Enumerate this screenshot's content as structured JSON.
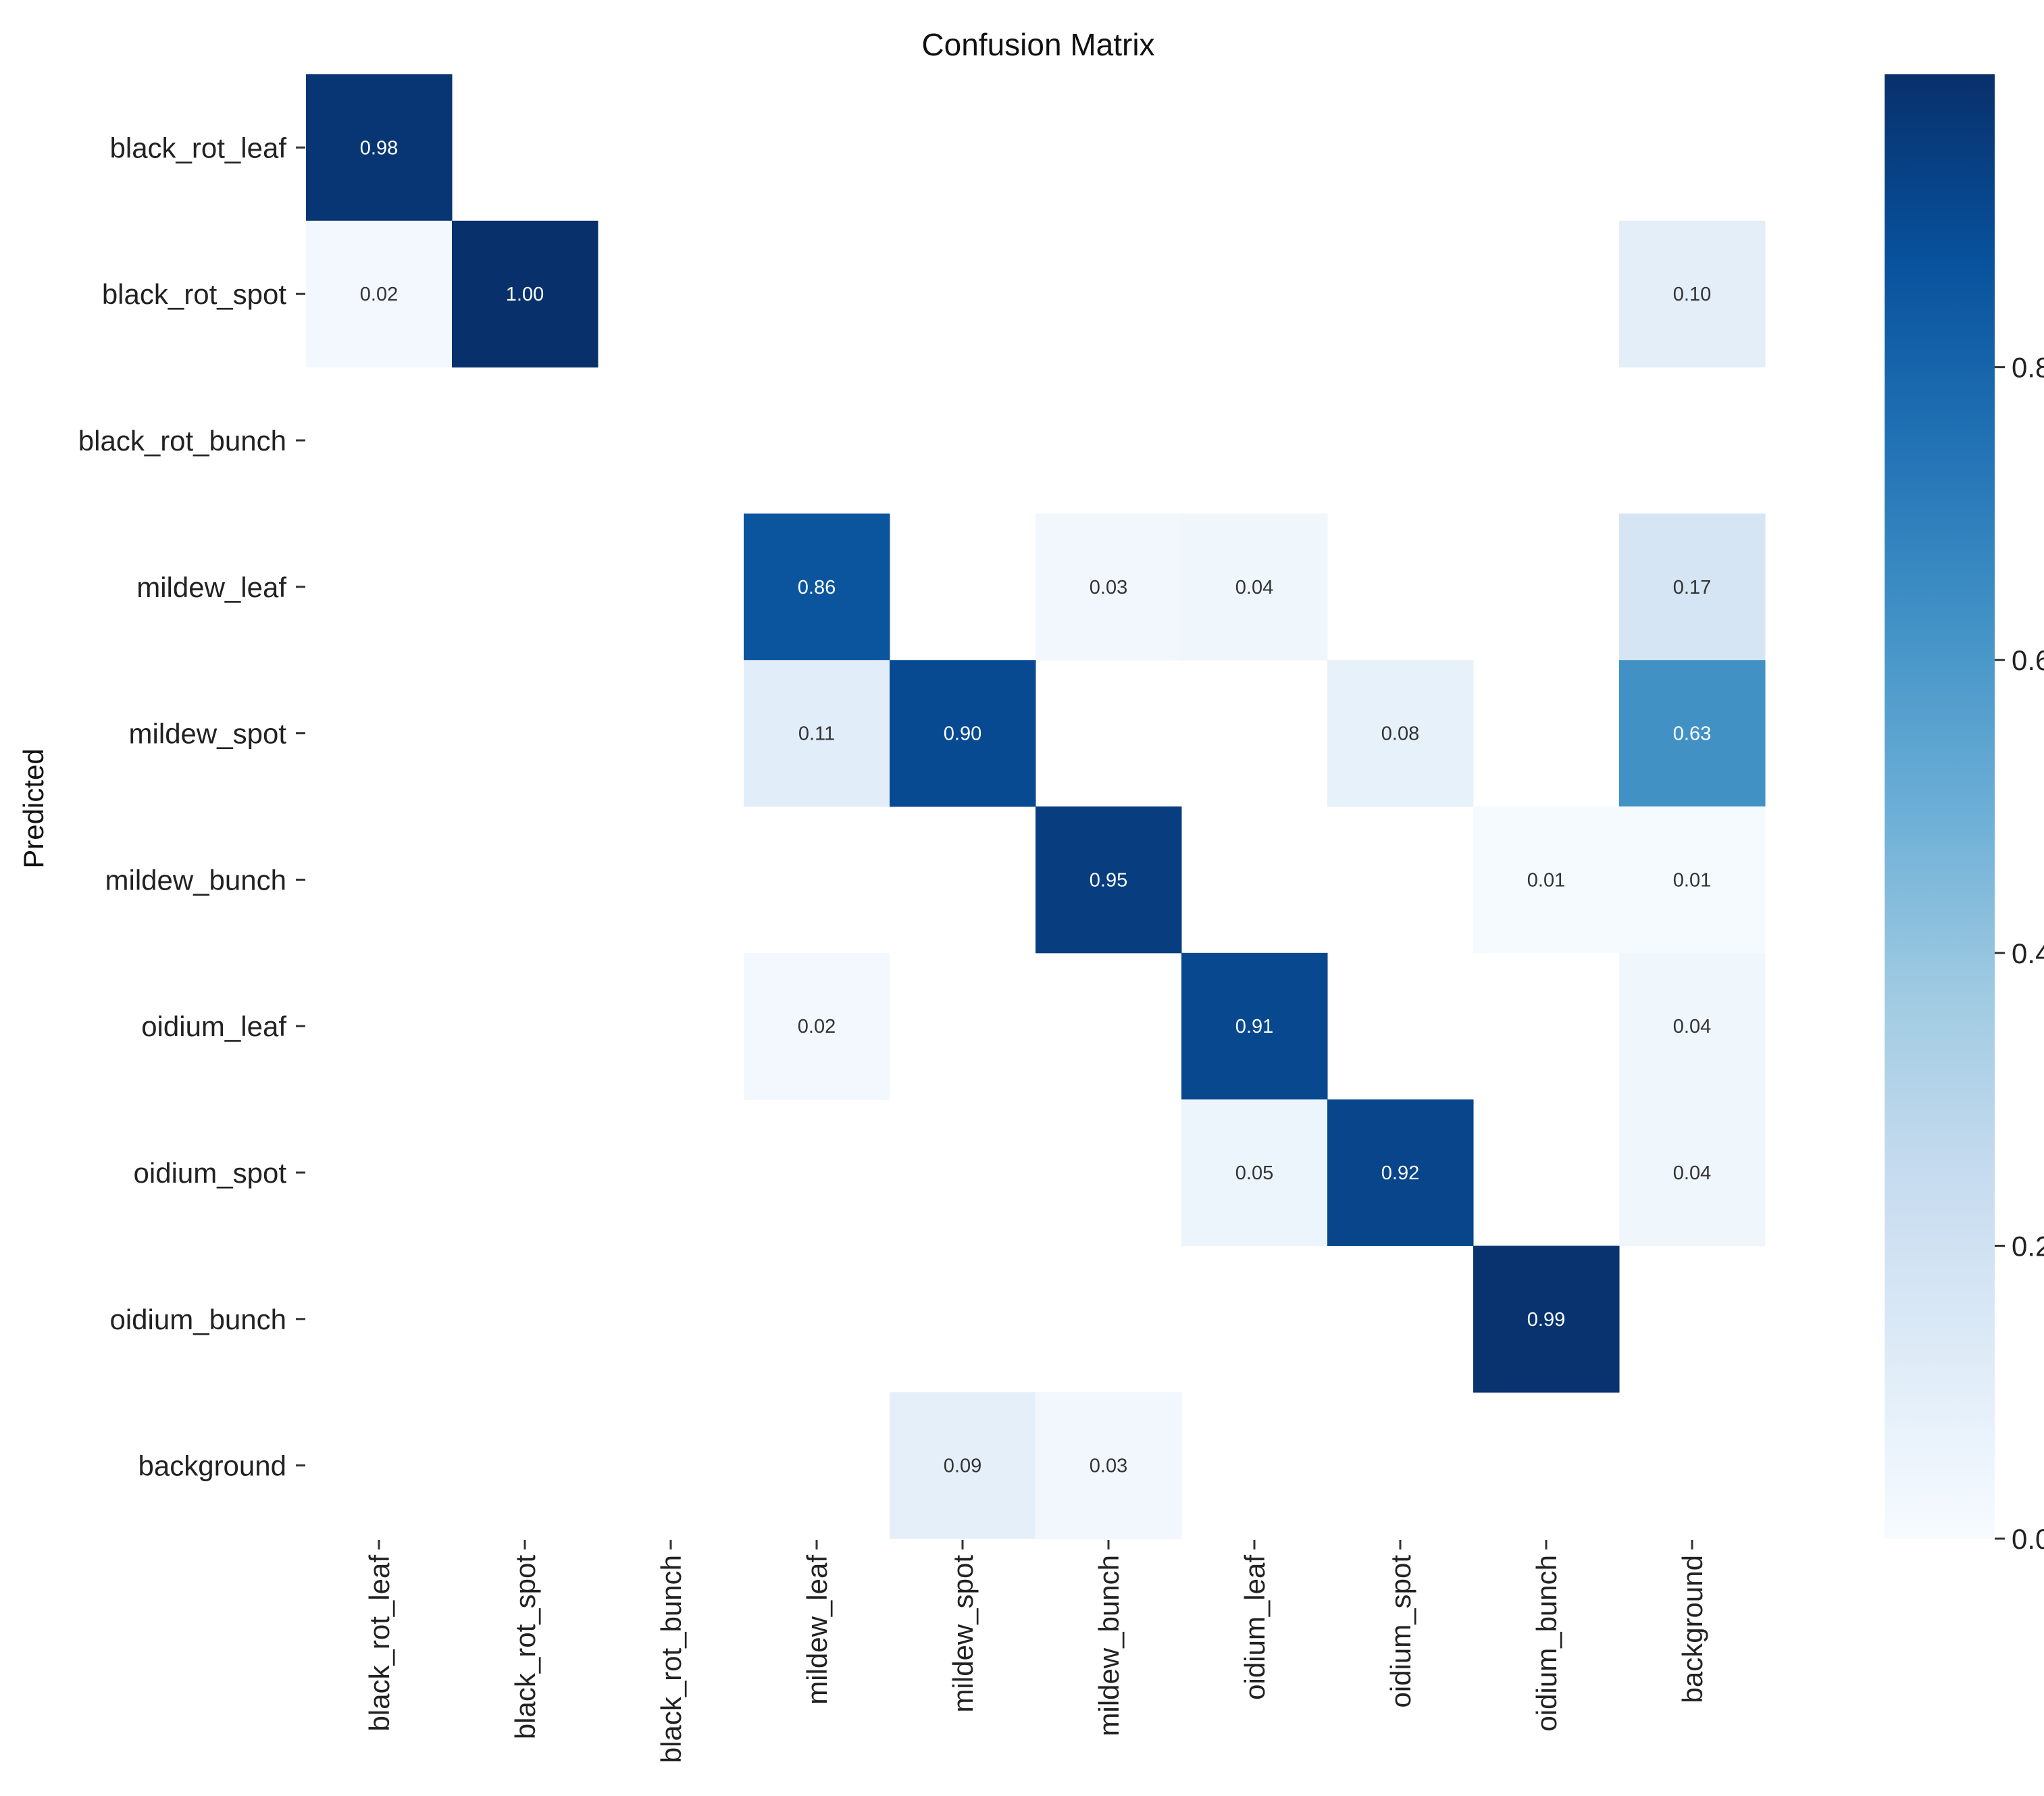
{
  "chart_data": {
    "type": "heatmap",
    "title": "Confusion Matrix",
    "ylabel": "Predicted",
    "xlabel": "",
    "row_labels": [
      "black_rot_leaf",
      "black_rot_spot",
      "black_rot_bunch",
      "mildew_leaf",
      "mildew_spot",
      "mildew_bunch",
      "oidium_leaf",
      "oidium_spot",
      "oidium_bunch",
      "background"
    ],
    "col_labels": [
      "black_rot_leaf",
      "black_rot_spot",
      "black_rot_bunch",
      "mildew_leaf",
      "mildew_spot",
      "mildew_bunch",
      "oidium_leaf",
      "oidium_spot",
      "oidium_bunch",
      "background"
    ],
    "values": [
      [
        0.98,
        null,
        null,
        null,
        null,
        null,
        null,
        null,
        null,
        null
      ],
      [
        0.02,
        1.0,
        null,
        null,
        null,
        null,
        null,
        null,
        null,
        0.1
      ],
      [
        null,
        null,
        null,
        null,
        null,
        null,
        null,
        null,
        null,
        null
      ],
      [
        null,
        null,
        null,
        0.86,
        null,
        0.03,
        0.04,
        null,
        null,
        0.17
      ],
      [
        null,
        null,
        null,
        0.11,
        0.9,
        null,
        null,
        0.08,
        null,
        0.63
      ],
      [
        null,
        null,
        null,
        null,
        null,
        0.95,
        null,
        null,
        0.01,
        0.01
      ],
      [
        null,
        null,
        null,
        0.02,
        null,
        null,
        0.91,
        null,
        null,
        0.04
      ],
      [
        null,
        null,
        null,
        null,
        null,
        null,
        0.05,
        0.92,
        null,
        0.04
      ],
      [
        null,
        null,
        null,
        null,
        null,
        null,
        null,
        null,
        0.99,
        null
      ],
      [
        null,
        null,
        null,
        null,
        0.09,
        0.03,
        null,
        null,
        null,
        null
      ]
    ],
    "colorbar": {
      "ticks": [
        "0.0",
        "0.2",
        "0.4",
        "0.6",
        "0.8"
      ],
      "range": [
        0,
        1.0
      ],
      "colormap": "Blues"
    }
  }
}
